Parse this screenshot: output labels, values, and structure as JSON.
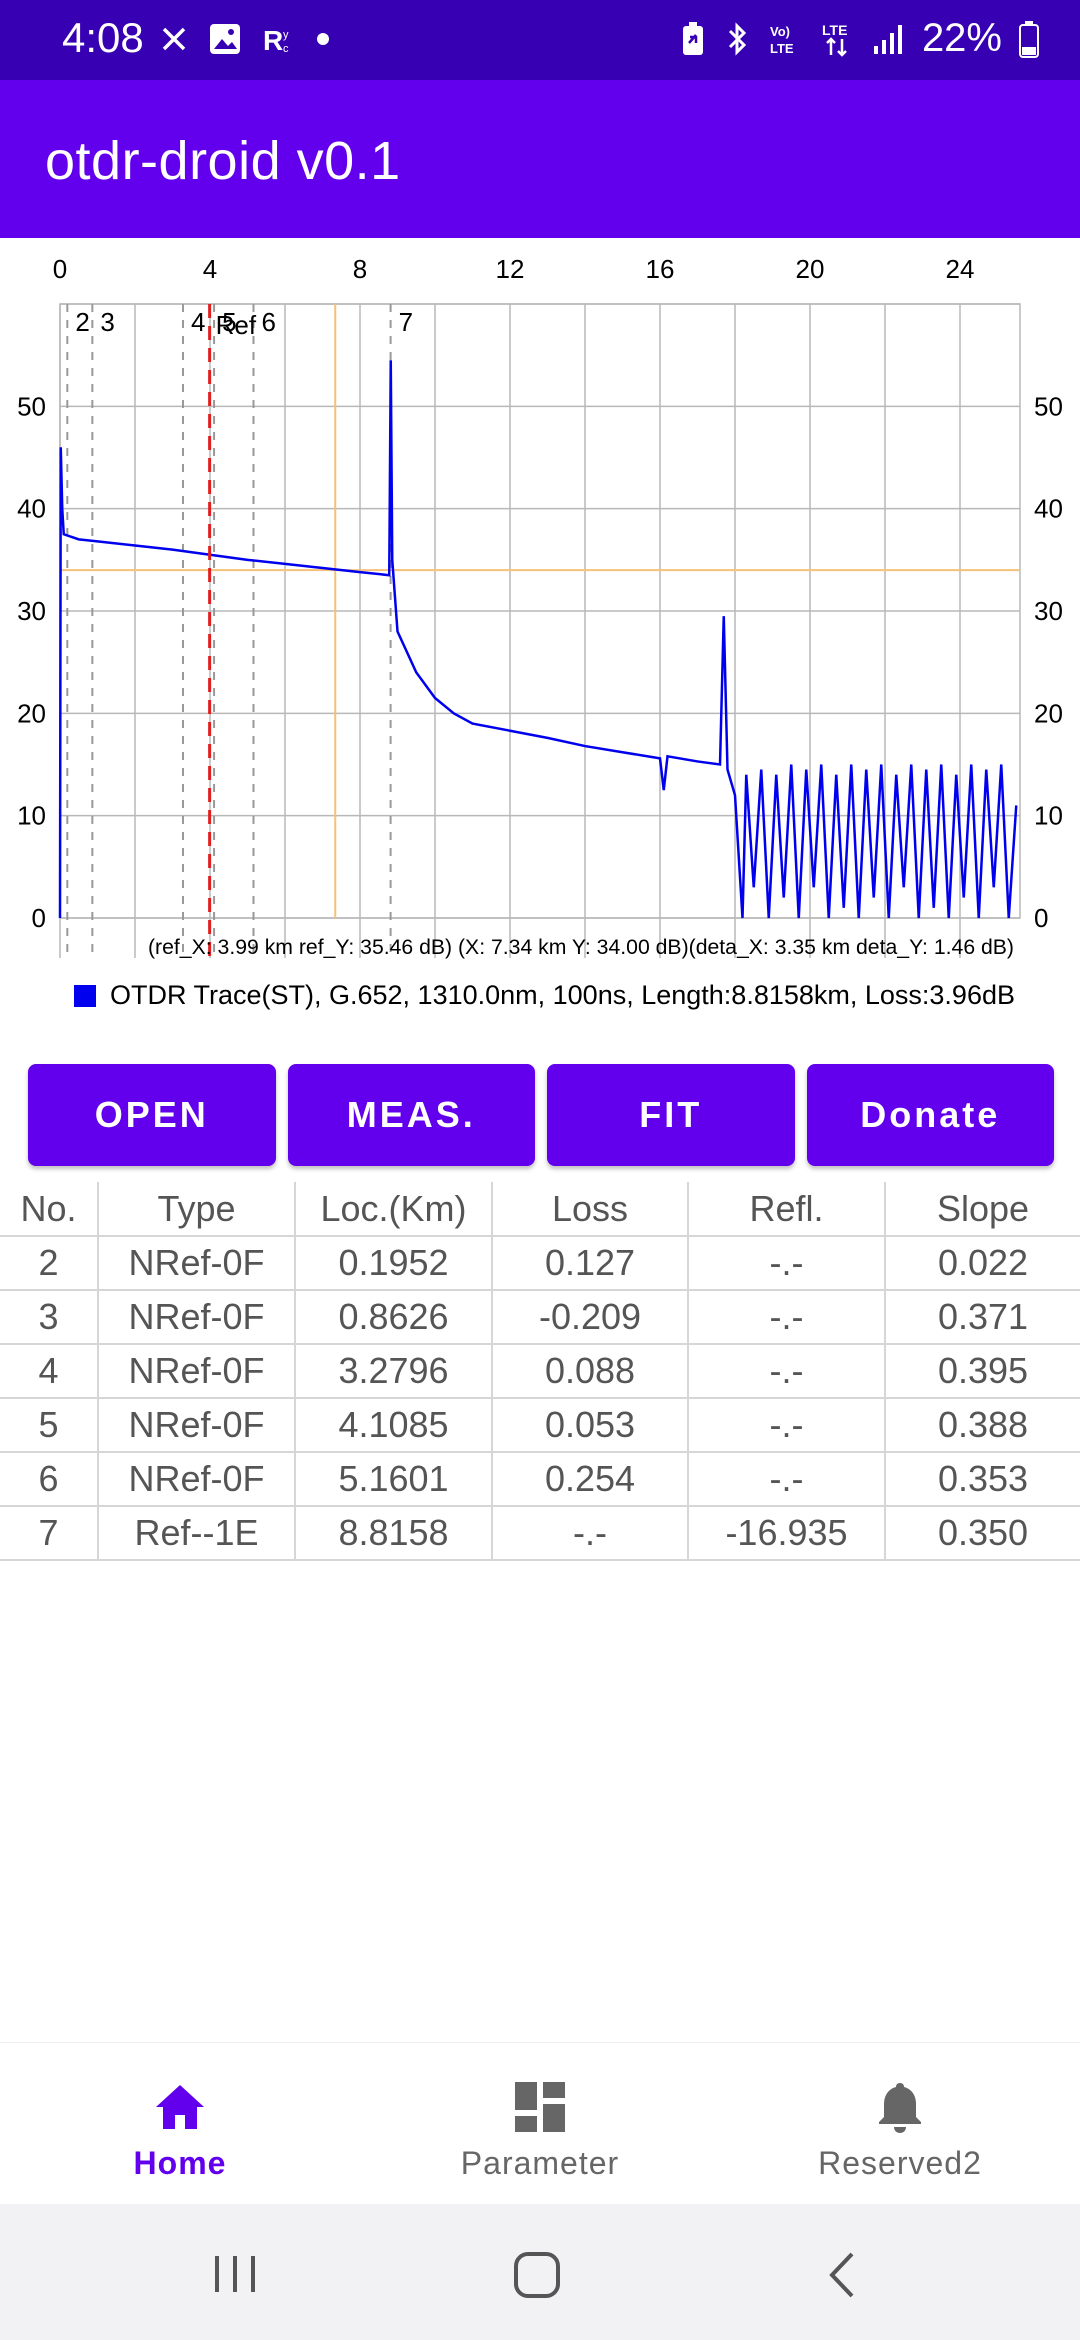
{
  "status_bar": {
    "time": "4:08",
    "battery": "22%",
    "left_icons": [
      "close-icon",
      "image-icon",
      "rx-icon",
      "dot-icon"
    ],
    "right_icons": [
      "battery-saver-icon",
      "bluetooth-icon",
      "volte-icon",
      "lte-icon",
      "signal-icon",
      "battery-icon"
    ]
  },
  "app_bar": {
    "title": "otdr-droid v0.1"
  },
  "chart_data": {
    "type": "line",
    "title": "",
    "x_ticks": [
      "0",
      "4",
      "8",
      "12",
      "16",
      "20",
      "24"
    ],
    "y_ticks": [
      "0",
      "10",
      "20",
      "30",
      "40",
      "50"
    ],
    "xlim": [
      0,
      25.6
    ],
    "ylim": [
      0,
      60
    ],
    "event_markers": [
      {
        "label": "2",
        "x": 0.1952
      },
      {
        "label": "3",
        "x": 0.8626
      },
      {
        "label": "4",
        "x": 3.2796
      },
      {
        "label": "5",
        "x": 4.1085
      },
      {
        "label": "6",
        "x": 5.1601
      },
      {
        "label": "7",
        "x": 8.8158
      }
    ],
    "ref_marker": {
      "label": "Ref",
      "x": 3.99
    },
    "cursor": {
      "x": 7.34,
      "y": 34.0
    },
    "info_text": "(ref_X: 3.99 km ref_Y: 35.46 dB) (X: 7.34 km  Y: 34.00 dB)(deta_X: 3.35 km deta_Y: 1.46 dB)",
    "legend": "OTDR Trace(ST), G.652, 1310.0nm, 100ns, Length:8.8158km, Loss:3.96dB",
    "series": [
      {
        "name": "OTDR Trace(ST)",
        "color": "#0000ee",
        "points": [
          [
            0.0,
            0
          ],
          [
            0.02,
            46
          ],
          [
            0.06,
            40
          ],
          [
            0.1,
            37.5
          ],
          [
            0.5,
            37.0
          ],
          [
            1.0,
            36.8
          ],
          [
            2.0,
            36.4
          ],
          [
            3.0,
            36.0
          ],
          [
            4.0,
            35.5
          ],
          [
            5.0,
            35.0
          ],
          [
            6.0,
            34.6
          ],
          [
            7.0,
            34.2
          ],
          [
            8.0,
            33.8
          ],
          [
            8.78,
            33.5
          ],
          [
            8.82,
            54.5
          ],
          [
            8.86,
            35
          ],
          [
            9.0,
            28
          ],
          [
            9.5,
            24
          ],
          [
            10.0,
            21.5
          ],
          [
            10.5,
            20
          ],
          [
            11.0,
            19
          ],
          [
            12.0,
            18.3
          ],
          [
            13.0,
            17.6
          ],
          [
            14.0,
            16.8
          ],
          [
            15.0,
            16.2
          ],
          [
            16.0,
            15.6
          ],
          [
            16.1,
            12.5
          ],
          [
            16.2,
            15.8
          ],
          [
            17.0,
            15.3
          ],
          [
            17.6,
            15.0
          ],
          [
            17.7,
            29.5
          ],
          [
            17.8,
            14.5
          ],
          [
            18.0,
            12.0
          ],
          [
            18.2,
            0
          ],
          [
            18.3,
            14.0
          ],
          [
            18.5,
            3
          ],
          [
            18.7,
            14.5
          ],
          [
            18.9,
            0
          ],
          [
            19.1,
            14
          ],
          [
            19.3,
            2
          ],
          [
            19.5,
            15
          ],
          [
            19.7,
            0
          ],
          [
            19.9,
            14.5
          ],
          [
            20.1,
            3
          ],
          [
            20.3,
            15
          ],
          [
            20.5,
            0
          ],
          [
            20.7,
            14
          ],
          [
            20.9,
            1
          ],
          [
            21.1,
            15
          ],
          [
            21.3,
            0
          ],
          [
            21.5,
            14.5
          ],
          [
            21.7,
            2
          ],
          [
            21.9,
            15
          ],
          [
            22.1,
            0
          ],
          [
            22.3,
            14
          ],
          [
            22.5,
            3
          ],
          [
            22.7,
            15
          ],
          [
            22.9,
            0
          ],
          [
            23.1,
            14.5
          ],
          [
            23.3,
            1
          ],
          [
            23.5,
            15
          ],
          [
            23.7,
            0
          ],
          [
            23.9,
            14
          ],
          [
            24.1,
            2
          ],
          [
            24.3,
            15
          ],
          [
            24.5,
            0
          ],
          [
            24.7,
            14.5
          ],
          [
            24.9,
            3
          ],
          [
            25.1,
            15
          ],
          [
            25.3,
            0
          ],
          [
            25.5,
            11
          ]
        ]
      }
    ]
  },
  "buttons": {
    "open": "OPEN",
    "meas": "MEAS.",
    "fit": "FIT",
    "donate": "Donate"
  },
  "table": {
    "headers": [
      "No.",
      "Type",
      "Loc.(Km)",
      "Loss",
      "Refl.",
      "Slope"
    ],
    "rows": [
      [
        "2",
        "NRef-0F",
        "0.1952",
        "0.127",
        "-.-",
        "0.022"
      ],
      [
        "3",
        "NRef-0F",
        "0.8626",
        "-0.209",
        "-.-",
        "0.371"
      ],
      [
        "4",
        "NRef-0F",
        "3.2796",
        "0.088",
        "-.-",
        "0.395"
      ],
      [
        "5",
        "NRef-0F",
        "4.1085",
        "0.053",
        "-.-",
        "0.388"
      ],
      [
        "6",
        "NRef-0F",
        "5.1601",
        "0.254",
        "-.-",
        "0.353"
      ],
      [
        "7",
        "Ref--1E",
        "8.8158",
        "-.-",
        "-16.935",
        "0.350"
      ]
    ]
  },
  "bottom_nav": {
    "items": [
      {
        "label": "Home",
        "icon": "home-icon",
        "active": true
      },
      {
        "label": "Parameter",
        "icon": "dashboard-icon",
        "active": false
      },
      {
        "label": "Reserved2",
        "icon": "bell-icon",
        "active": false
      }
    ]
  },
  "colors": {
    "primary": "#6200ee",
    "status_bar": "#3700b3",
    "trace": "#0000ee",
    "ref_marker": "#e02020",
    "cursor": "#f5c07a"
  }
}
